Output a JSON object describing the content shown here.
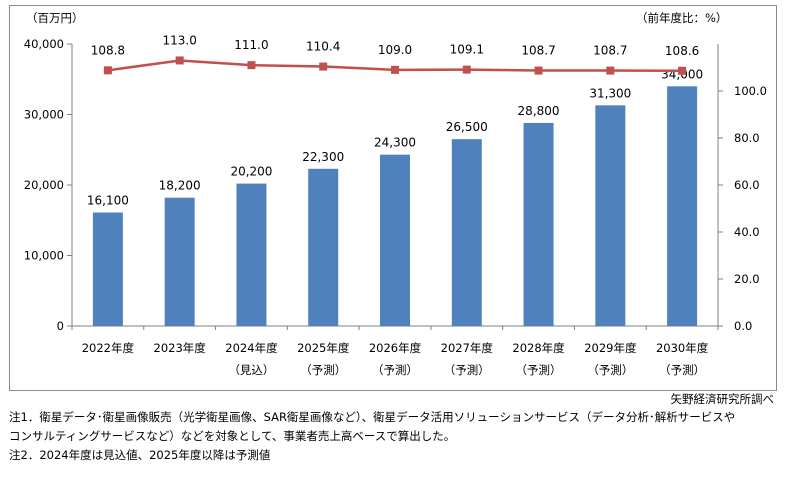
{
  "chart_data": {
    "type": "bar+line",
    "title": "",
    "left_unit_label": "（百万円）",
    "right_unit_label": "（前年度比：%）",
    "categories": [
      [
        "2022年度",
        ""
      ],
      [
        "2023年度",
        ""
      ],
      [
        "2024年度",
        "（見込）"
      ],
      [
        "2025年度",
        "（予測）"
      ],
      [
        "2026年度",
        "（予測）"
      ],
      [
        "2027年度",
        "（予測）"
      ],
      [
        "2028年度",
        "（予測）"
      ],
      [
        "2029年度",
        "（予測）"
      ],
      [
        "2030年度",
        "（予測）"
      ]
    ],
    "bar_series": {
      "axis": "left",
      "values": [
        16100,
        18200,
        20200,
        22300,
        24300,
        26500,
        28800,
        31300,
        34000
      ],
      "labels": [
        "16,100",
        "18,200",
        "20,200",
        "22,300",
        "24,300",
        "26,500",
        "28,800",
        "31,300",
        "34,000"
      ]
    },
    "line_series": {
      "axis": "right",
      "values": [
        108.8,
        113.0,
        111.0,
        110.4,
        109.0,
        109.1,
        108.7,
        108.7,
        108.6
      ],
      "labels": [
        "108.8",
        "113.0",
        "111.0",
        "110.4",
        "109.0",
        "109.1",
        "108.7",
        "108.7",
        "108.6"
      ]
    },
    "left_axis": {
      "ylim": [
        0,
        40000
      ],
      "ticks": [
        0,
        10000,
        20000,
        30000,
        40000
      ],
      "tick_labels": [
        "0",
        "10,000",
        "20,000",
        "30,000",
        "40,000"
      ]
    },
    "right_axis": {
      "ylim": [
        0,
        120
      ],
      "ticks": [
        0,
        20,
        40,
        60,
        80,
        100
      ],
      "tick_labels": [
        "0.0",
        "20.0",
        "40.0",
        "60.0",
        "80.0",
        "100.0"
      ]
    },
    "grid": false,
    "colors": {
      "bar": "#4f81bd",
      "line": "#c0504d"
    }
  },
  "source": "矢野経済研究所調べ",
  "notes": [
    "注1．衛星データ･衛星画像販売（光学衛星画像、SAR衛星画像など）、衛星データ活用ソリューションサービス（データ分析･解析サービスや",
    "コンサルティングサービスなど）などを対象として、事業者売上高ベースで算出した。",
    "注2．2024年度は見込値、2025年度以降は予測値"
  ]
}
